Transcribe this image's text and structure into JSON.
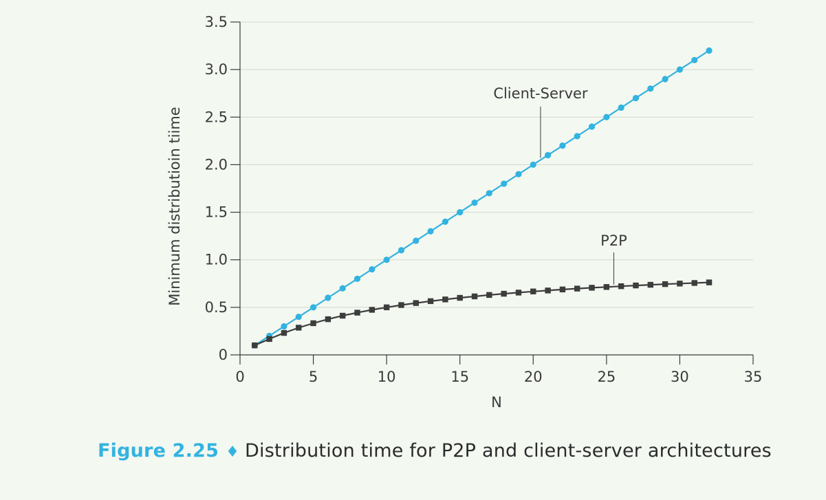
{
  "caption": {
    "figure_number": "Figure 2.25",
    "separator": "♦",
    "text": "Distribution time for P2P and client-server architectures"
  },
  "chart_data": {
    "type": "line",
    "xlabel": "N",
    "ylabel": "Minimum distributioin tiime",
    "xlim": [
      0,
      35
    ],
    "ylim": [
      0,
      3.5
    ],
    "x_ticks": [
      0,
      5,
      10,
      15,
      20,
      25,
      30,
      35
    ],
    "x_tick_labels": [
      "0",
      "5",
      "10",
      "15",
      "20",
      "25",
      "30",
      "35"
    ],
    "y_ticks": [
      0,
      0.5,
      1.0,
      1.5,
      2.0,
      2.5,
      3.0,
      3.5
    ],
    "y_tick_labels": [
      "0",
      "0.5",
      "1.0",
      "1.5",
      "2.0",
      "2.5",
      "3.0",
      "3.5"
    ],
    "grid": "horizontal",
    "series": [
      {
        "name": "Client-Server",
        "color": "#33b3e0",
        "marker": "circle",
        "x": [
          1,
          2,
          3,
          4,
          5,
          6,
          7,
          8,
          9,
          10,
          11,
          12,
          13,
          14,
          15,
          16,
          17,
          18,
          19,
          20,
          21,
          22,
          23,
          24,
          25,
          26,
          27,
          28,
          29,
          30,
          31,
          32
        ],
        "values": [
          0.1,
          0.2,
          0.3,
          0.4,
          0.5,
          0.6,
          0.7,
          0.8,
          0.9,
          1.0,
          1.1,
          1.2,
          1.3,
          1.4,
          1.5,
          1.6,
          1.7,
          1.8,
          1.9,
          2.0,
          2.1,
          2.2,
          2.3,
          2.4,
          2.5,
          2.6,
          2.7,
          2.8,
          2.9,
          3.0,
          3.1,
          3.2
        ]
      },
      {
        "name": "P2P",
        "color": "#3d3d3d",
        "marker": "square",
        "x": [
          1,
          2,
          3,
          4,
          5,
          6,
          7,
          8,
          9,
          10,
          11,
          12,
          13,
          14,
          15,
          16,
          17,
          18,
          19,
          20,
          21,
          22,
          23,
          24,
          25,
          26,
          27,
          28,
          29,
          30,
          31,
          32
        ],
        "values": [
          0.1,
          0.167,
          0.231,
          0.286,
          0.333,
          0.375,
          0.412,
          0.444,
          0.474,
          0.5,
          0.524,
          0.545,
          0.565,
          0.583,
          0.6,
          0.615,
          0.63,
          0.643,
          0.655,
          0.667,
          0.677,
          0.688,
          0.697,
          0.706,
          0.714,
          0.722,
          0.73,
          0.737,
          0.744,
          0.75,
          0.756,
          0.762
        ]
      }
    ],
    "annotations": [
      {
        "text": "Client-Server",
        "series": "Client-Server",
        "x": 20.5
      },
      {
        "text": "P2P",
        "series": "P2P",
        "x": 25.5
      }
    ]
  }
}
